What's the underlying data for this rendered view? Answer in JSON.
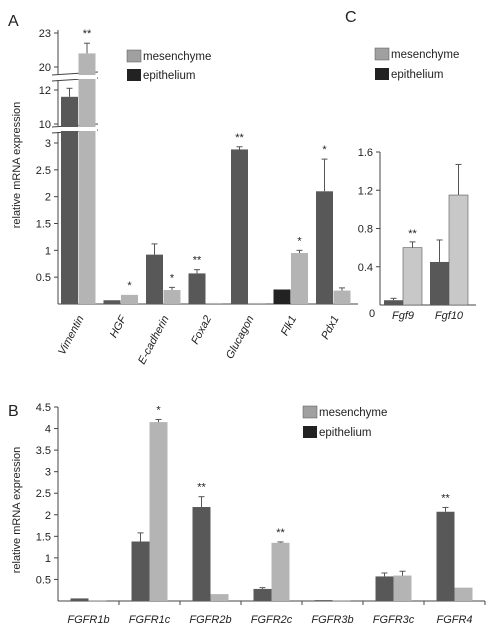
{
  "colors": {
    "mesenchyme": "#a0a0a0",
    "epithelium": "#222222",
    "dark_bar": "#585858",
    "light_bar": "#b4b4b4"
  },
  "chart_data": [
    {
      "panel": "A",
      "type": "bar",
      "ylabel": "relative mRNA expression",
      "y_ticks": [
        "0.5",
        "1",
        "1.5",
        "2",
        "2.5",
        "3",
        "10",
        "12",
        "20",
        "23"
      ],
      "categories": [
        "Vimentin",
        "HGF",
        "E-cadherin",
        "Foxa2",
        "Glucagon",
        "Flk1",
        "Pdx1"
      ],
      "legend": [
        "mesenchyme",
        "epithelium"
      ],
      "bars": [
        {
          "category": "Vimentin",
          "slot": 0,
          "value": 11.6,
          "error": 0.5,
          "shade": "dark"
        },
        {
          "category": "Vimentin",
          "slot": 1,
          "value": 21.2,
          "error": 0.9,
          "shade": "light",
          "sig": "**"
        },
        {
          "category": "HGF",
          "slot": 0,
          "value": 0.07,
          "error": 0.0,
          "shade": "dark"
        },
        {
          "category": "HGF",
          "slot": 1,
          "value": 0.17,
          "error": 0.0,
          "shade": "light",
          "sig": "*"
        },
        {
          "category": "E-cadherin",
          "slot": 0,
          "value": 0.92,
          "error": 0.2,
          "shade": "dark"
        },
        {
          "category": "E-cadherin",
          "slot": 1,
          "value": 0.26,
          "error": 0.05,
          "shade": "light",
          "sig": "*"
        },
        {
          "category": "Foxa2",
          "slot": 0,
          "value": 0.57,
          "error": 0.07,
          "shade": "dark",
          "sig": "**"
        },
        {
          "category": "Foxa2",
          "slot": 1,
          "value": 0.02,
          "error": 0.0,
          "shade": "light"
        },
        {
          "category": "Glucagon",
          "slot": 0,
          "value": 2.88,
          "error": 0.05,
          "shade": "dark",
          "sig": "**"
        },
        {
          "category": "Glucagon",
          "slot": 1,
          "value": 0.02,
          "error": 0.0,
          "shade": "light"
        },
        {
          "category": "Flk1",
          "slot": 0,
          "value": 0.27,
          "error": 0.0,
          "shade": "black"
        },
        {
          "category": "Flk1",
          "slot": 1,
          "value": 0.95,
          "error": 0.05,
          "shade": "light",
          "sig": "*"
        },
        {
          "category": "Pdx1",
          "slot": 0,
          "value": 2.1,
          "error": 0.6,
          "shade": "dark",
          "sig": "*"
        },
        {
          "category": "Pdx1",
          "slot": 1,
          "value": 0.25,
          "error": 0.05,
          "shade": "light"
        }
      ]
    },
    {
      "panel": "B",
      "type": "bar",
      "ylabel": "relative mRNA expression",
      "ylim": [
        0,
        4.5
      ],
      "y_ticks": [
        "0.5",
        "1",
        "1.5",
        "2",
        "2.5",
        "3",
        "3.5",
        "4",
        "4.5"
      ],
      "categories": [
        "FGFR1b",
        "FGFR1c",
        "FGFR2b",
        "FGFR2c",
        "FGFR3b",
        "FGFR3c",
        "FGFR4"
      ],
      "legend": [
        "mesenchyme",
        "epithelium"
      ],
      "series": [
        {
          "values": [
            0.06,
            1.38,
            2.18,
            0.28,
            0.02,
            0.57,
            2.07
          ],
          "errors": [
            0,
            0.2,
            0.24,
            0.03,
            0,
            0.08,
            0.1
          ]
        },
        {
          "values": [
            0.02,
            4.15,
            0.16,
            1.35,
            0.02,
            0.59,
            0.31
          ],
          "errors": [
            0,
            0.06,
            0,
            0.02,
            0,
            0.1,
            0
          ]
        }
      ],
      "significance": [
        "",
        "*",
        "**",
        "**",
        "",
        "",
        "**"
      ]
    },
    {
      "panel": "C",
      "type": "bar",
      "ylim": [
        0,
        1.6
      ],
      "y_ticks": [
        "0",
        "0.4",
        "0.8",
        "1.2",
        "1.6"
      ],
      "categories": [
        "Fgf9",
        "Fgf10"
      ],
      "legend": [
        "mesenchyme",
        "epithelium"
      ],
      "series": [
        {
          "values": [
            0.05,
            0.45
          ],
          "errors": [
            0.02,
            0.23
          ]
        },
        {
          "values": [
            0.6,
            1.15
          ],
          "errors": [
            0.06,
            0.32
          ]
        }
      ],
      "significance": [
        "**",
        ""
      ]
    }
  ]
}
